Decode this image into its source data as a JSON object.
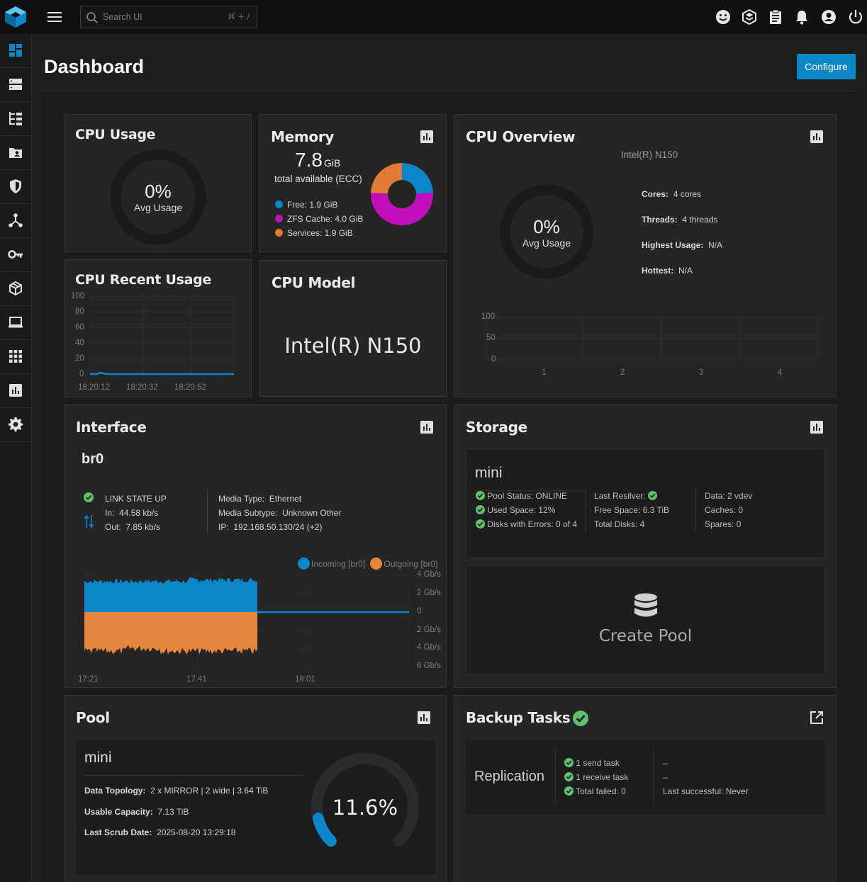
{
  "search": {
    "placeholder": "Search UI",
    "shortcut": "⌘ + /"
  },
  "topbar_icons": [
    "feedback-icon",
    "truenas-connect-icon",
    "jobs-clipboard-icon",
    "bell-icon",
    "account-icon",
    "power-icon"
  ],
  "sidebar": {
    "items": [
      {
        "name": "dashboard",
        "icon": "dashboard-icon"
      },
      {
        "name": "storage",
        "icon": "storage-icon"
      },
      {
        "name": "datasets",
        "icon": "datasets-icon"
      },
      {
        "name": "shares",
        "icon": "shares-icon"
      },
      {
        "name": "data-protection",
        "icon": "shield-icon"
      },
      {
        "name": "network",
        "icon": "network-icon"
      },
      {
        "name": "credentials",
        "icon": "key-icon"
      },
      {
        "name": "instances",
        "icon": "cube-icon"
      },
      {
        "name": "apps",
        "icon": "laptop-icon"
      },
      {
        "name": "apps-grid",
        "icon": "grid-icon"
      },
      {
        "name": "reporting",
        "icon": "chart-icon"
      },
      {
        "name": "system",
        "icon": "gear-icon"
      }
    ]
  },
  "page": {
    "title": "Dashboard",
    "configure_label": "Configure"
  },
  "cpu_usage": {
    "title": "CPU Usage",
    "value": "0%",
    "label": "Avg Usage",
    "fraction": 0
  },
  "memory": {
    "title": "Memory",
    "total": "7.8",
    "unit": "GiB",
    "subtitle": "total available (ECC)",
    "colors": {
      "free": "#0b86c9",
      "zfs": "#c10fbd",
      "services": "#e07a35"
    },
    "legend": [
      {
        "label": "Free:",
        "value": "1.9 GiB",
        "gib": 1.9
      },
      {
        "label": "ZFS Cache:",
        "value": "4.0 GiB",
        "gib": 4.0
      },
      {
        "label": "Services:",
        "value": "1.9 GiB",
        "gib": 1.9
      }
    ]
  },
  "cpu_overview": {
    "title": "CPU Overview",
    "model": "Intel(R) N150",
    "value": "0%",
    "label": "Avg Usage",
    "stats": [
      {
        "label": "Cores:",
        "value": "4 cores"
      },
      {
        "label": "Threads:",
        "value": "4 threads"
      },
      {
        "label": "Highest Usage:",
        "value": "N/A"
      },
      {
        "label": "Hottest:",
        "value": "N/A"
      }
    ],
    "bar_axis": {
      "y": [
        "100",
        "50",
        "0"
      ],
      "x": [
        "1",
        "2",
        "3",
        "4"
      ]
    }
  },
  "cpu_recent": {
    "title": "CPU Recent Usage",
    "y_ticks": [
      "100",
      "80",
      "60",
      "40",
      "20",
      "0"
    ],
    "x_ticks": [
      "18:20:12",
      "18:20:32",
      "18:20:52"
    ],
    "series_color": "#0b86c9"
  },
  "cpu_model": {
    "title": "CPU Model",
    "value": "Intel(R) N150"
  },
  "interface": {
    "title": "Interface",
    "name": "br0",
    "link_state": "LINK STATE UP",
    "in_label": "In:",
    "in_value": "44.58 kb/s",
    "out_label": "Out:",
    "out_value": "7.85 kb/s",
    "media_type_label": "Media Type:",
    "media_type": "Ethernet",
    "media_subtype_label": "Media Subtype:",
    "media_subtype": "Unknown Other",
    "ip_label": "IP:",
    "ip": "192.168.50.130/24 (+2)",
    "legend": [
      "Incoming [br0]",
      "Outgoing [br0]"
    ],
    "y_ticks": [
      "4 Gb/s",
      "2 Gb/s",
      "0",
      "2 Gb/s",
      "4 Gb/s",
      "6 Gb/s"
    ],
    "x_ticks": [
      "17:21",
      "17:41",
      "18:01"
    ],
    "colors": {
      "incoming": "#0b86c9",
      "outgoing": "#e8863d"
    }
  },
  "storage": {
    "title": "Storage",
    "pool_name": "mini",
    "col1": [
      "Pool Status: ONLINE",
      "Used Space: 12%",
      "Disks with Errors: 0 of 4"
    ],
    "col2": [
      "Last Resilver:",
      "Free Space: 6.3 TiB",
      "Total Disks: 4"
    ],
    "col3": [
      "Data: 2 vdev",
      "Caches: 0",
      "Spares: 0"
    ],
    "create_pool": "Create Pool"
  },
  "pool": {
    "title": "Pool",
    "name": "mini",
    "topology_label": "Data Topology:",
    "topology": "2 x MIRROR | 2 wide | 3.64 TiB",
    "capacity_label": "Usable Capacity:",
    "capacity": "7.13 TiB",
    "scrub_label": "Last Scrub Date:",
    "scrub": "2025-08-20 13:29:18",
    "used_percent": "11.6%",
    "used_fraction": 0.116
  },
  "backup": {
    "title": "Backup Tasks",
    "type": "Replication",
    "items": [
      "1 send task",
      "1 receive task",
      "Total failed: 0"
    ],
    "col2": [
      "–",
      "–",
      "Last successful: Never"
    ]
  }
}
